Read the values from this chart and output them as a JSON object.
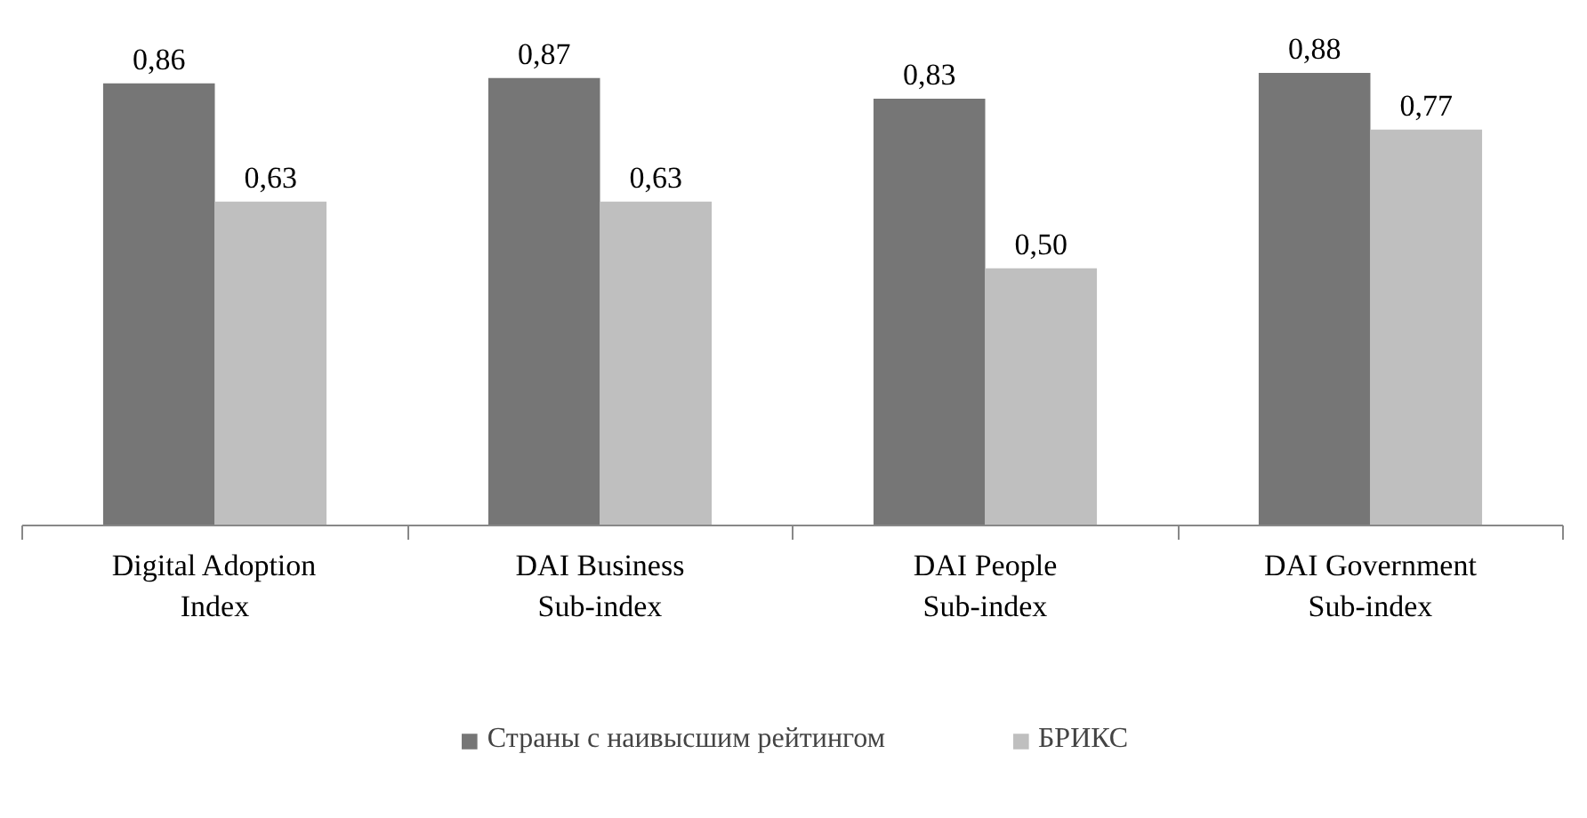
{
  "chart_data": {
    "type": "bar",
    "categories": [
      "Digital Adoption\nIndex",
      "DAI Business\nSub-index",
      "DAI People\nSub-index",
      "DAI Government\nSub-index"
    ],
    "series": [
      {
        "name": "Страны с наивысшим рейтингом",
        "color": "#767676",
        "values": [
          0.86,
          0.87,
          0.83,
          0.88
        ],
        "value_labels": [
          "0,86",
          "0,87",
          "0,83",
          "0,88"
        ]
      },
      {
        "name": "БРИКС",
        "color": "#bfbfbf",
        "values": [
          0.63,
          0.63,
          0.5,
          0.77
        ],
        "value_labels": [
          "0,63",
          "0,63",
          "0,50",
          "0,77"
        ]
      }
    ],
    "legend": "bottom"
  }
}
